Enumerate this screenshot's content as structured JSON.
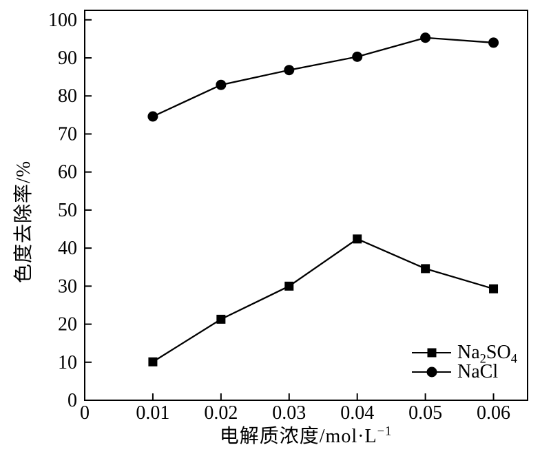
{
  "figure": {
    "background": "#ffffff",
    "line_color": "#000000"
  },
  "chart_data": {
    "type": "line",
    "title": "",
    "xlabel": "电解质浓度/mol·L−1",
    "xlabel_parts": [
      {
        "text": "电解质浓度/mol·L"
      },
      {
        "text": "−1",
        "sup": true
      }
    ],
    "ylabel": "色度去除率/%",
    "x": [
      0.01,
      0.02,
      0.03,
      0.04,
      0.05,
      0.06
    ],
    "series": [
      {
        "name": "Na2SO4",
        "label_parts": [
          {
            "text": "Na"
          },
          {
            "text": "2",
            "sub": true
          },
          {
            "text": "SO"
          },
          {
            "text": "4",
            "sub": true
          }
        ],
        "marker": "square",
        "color": "#000000",
        "values": [
          10.1,
          21.3,
          30.0,
          42.4,
          34.6,
          29.3
        ]
      },
      {
        "name": "NaCl",
        "label_parts": [
          {
            "text": "NaCl"
          }
        ],
        "marker": "circle",
        "color": "#000000",
        "values": [
          74.6,
          82.9,
          86.8,
          90.3,
          95.3,
          94.0
        ]
      }
    ],
    "xlim": [
      0,
      0.065
    ],
    "ylim": [
      0,
      102.5
    ],
    "x_ticks": [
      0,
      0.01,
      0.02,
      0.03,
      0.04,
      0.05,
      0.06
    ],
    "x_tick_labels": [
      "0",
      "0.01",
      "0.02",
      "0.03",
      "0.04",
      "0.05",
      "0.06"
    ],
    "y_ticks": [
      0,
      10,
      20,
      30,
      40,
      50,
      60,
      70,
      80,
      90,
      100
    ],
    "y_tick_labels": [
      "0",
      "10",
      "20",
      "30",
      "40",
      "50",
      "60",
      "70",
      "80",
      "90",
      "100"
    ],
    "grid": false,
    "legend_position": "bottom-right"
  }
}
